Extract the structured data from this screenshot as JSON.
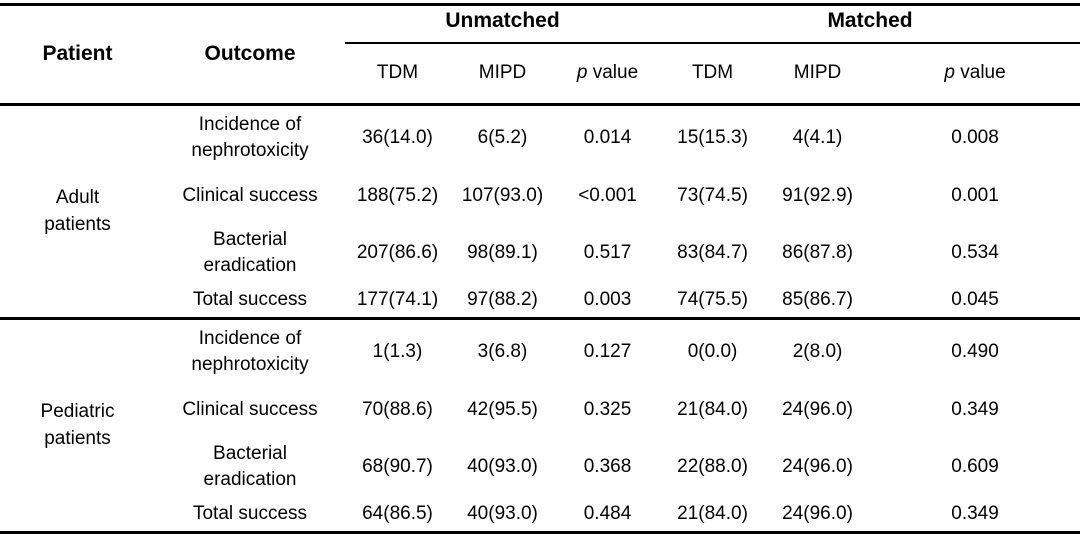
{
  "header": {
    "patient": "Patient",
    "outcome": "Outcome",
    "groups": [
      {
        "label": "Unmatched"
      },
      {
        "label": "Matched"
      }
    ],
    "subcols": {
      "tdm": "TDM",
      "mipd": "MIPD",
      "p_italic": "p",
      "p_rest": " value"
    }
  },
  "table": {
    "sections": [
      {
        "patient": "Adult patients",
        "rows": [
          {
            "outcome": "Incidence of nephrotoxicity",
            "values": [
              "36(14.0)",
              "6(5.2)",
              "0.014",
              "15(15.3)",
              "4(4.1)",
              "0.008"
            ]
          },
          {
            "outcome": "Clinical success",
            "values": [
              "188(75.2)",
              "107(93.0)",
              "<0.001",
              "73(74.5)",
              "91(92.9)",
              "0.001"
            ]
          },
          {
            "outcome": "Bacterial eradication",
            "values": [
              "207(86.6)",
              "98(89.1)",
              "0.517",
              "83(84.7)",
              "86(87.8)",
              "0.534"
            ]
          },
          {
            "outcome": "Total success",
            "values": [
              "177(74.1)",
              "97(88.2)",
              "0.003",
              "74(75.5)",
              "85(86.7)",
              "0.045"
            ]
          }
        ]
      },
      {
        "patient": "Pediatric patients",
        "rows": [
          {
            "outcome": "Incidence of nephrotoxicity",
            "values": [
              "1(1.3)",
              "3(6.8)",
              "0.127",
              "0(0.0)",
              "2(8.0)",
              "0.490"
            ]
          },
          {
            "outcome": "Clinical success",
            "values": [
              "70(88.6)",
              "42(95.5)",
              "0.325",
              "21(84.0)",
              "24(96.0)",
              "0.349"
            ]
          },
          {
            "outcome": "Bacterial eradication",
            "values": [
              "68(90.7)",
              "40(93.0)",
              "0.368",
              "22(88.0)",
              "24(96.0)",
              "0.609"
            ]
          },
          {
            "outcome": "Total success",
            "values": [
              "64(86.5)",
              "40(93.0)",
              "0.484",
              "21(84.0)",
              "24(96.0)",
              "0.349"
            ]
          }
        ]
      }
    ]
  }
}
